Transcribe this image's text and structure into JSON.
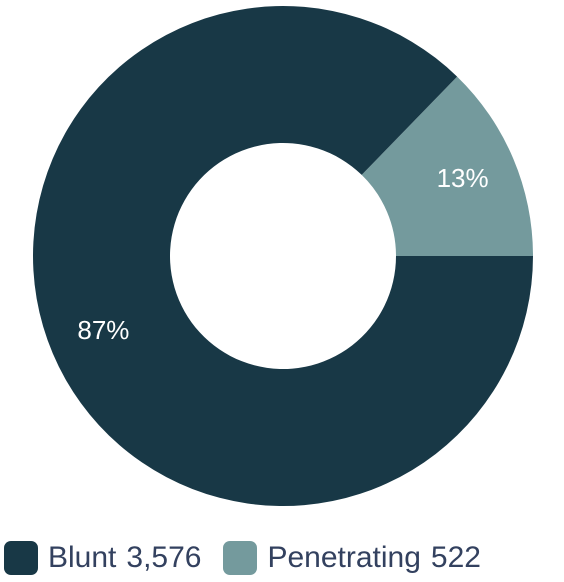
{
  "chart_data": {
    "type": "pie",
    "donut": true,
    "categories": [
      "Blunt",
      "Penetrating"
    ],
    "values": [
      3576,
      522
    ],
    "value_labels": [
      "3,576",
      "522"
    ],
    "percent_labels": [
      "87%",
      "13%"
    ],
    "colors": [
      "#183846",
      "#749a9d"
    ],
    "legend_placement": "bottom"
  }
}
